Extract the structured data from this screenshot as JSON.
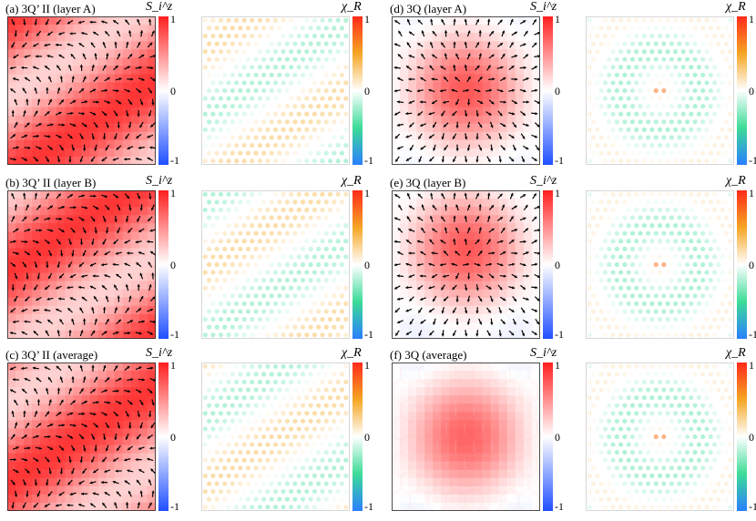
{
  "figure": {
    "panels": [
      {
        "label": "(a) 3Q’ II (layer A)",
        "spin_bar_label": "S_i^z",
        "chirality_bar_label": "χ_R",
        "pattern": "stripe",
        "phase": 0
      },
      {
        "label": "(b) 3Q’ II (layer B)",
        "spin_bar_label": "S_i^z",
        "chirality_bar_label": "χ_R",
        "pattern": "stripe",
        "phase": 0.5
      },
      {
        "label": "(c) 3Q’ II (average)",
        "spin_bar_label": "S_i^z",
        "chirality_bar_label": "χ_R",
        "pattern": "stripe",
        "phase": 0.25
      },
      {
        "label": "(d) 3Q (layer A)",
        "spin_bar_label": "S_i^z",
        "chirality_bar_label": "χ_R",
        "pattern": "skyrmion",
        "phase": 0
      },
      {
        "label": "(e) 3Q (layer B)",
        "spin_bar_label": "S_i^z",
        "chirality_bar_label": "χ_R",
        "pattern": "skyrmion",
        "phase": 0.5
      },
      {
        "label": "(f) 3Q (average)",
        "spin_bar_label": "S_i^z",
        "chirality_bar_label": "χ_R",
        "pattern": "hex",
        "phase": 0
      }
    ],
    "colorbar_ticks": [
      "1",
      "0",
      "-1"
    ]
  },
  "chart_data": {
    "type": "heatmap",
    "colorbar_range": [
      -1,
      1
    ],
    "spin_colorscale": [
      "#1f4fff",
      "#ffffff",
      "#ff1f1f"
    ],
    "chirality_colorscale": [
      "#2a7fff",
      "#3ddc97",
      "#ffffff",
      "#f5a623",
      "#ff2a1a"
    ]
  }
}
